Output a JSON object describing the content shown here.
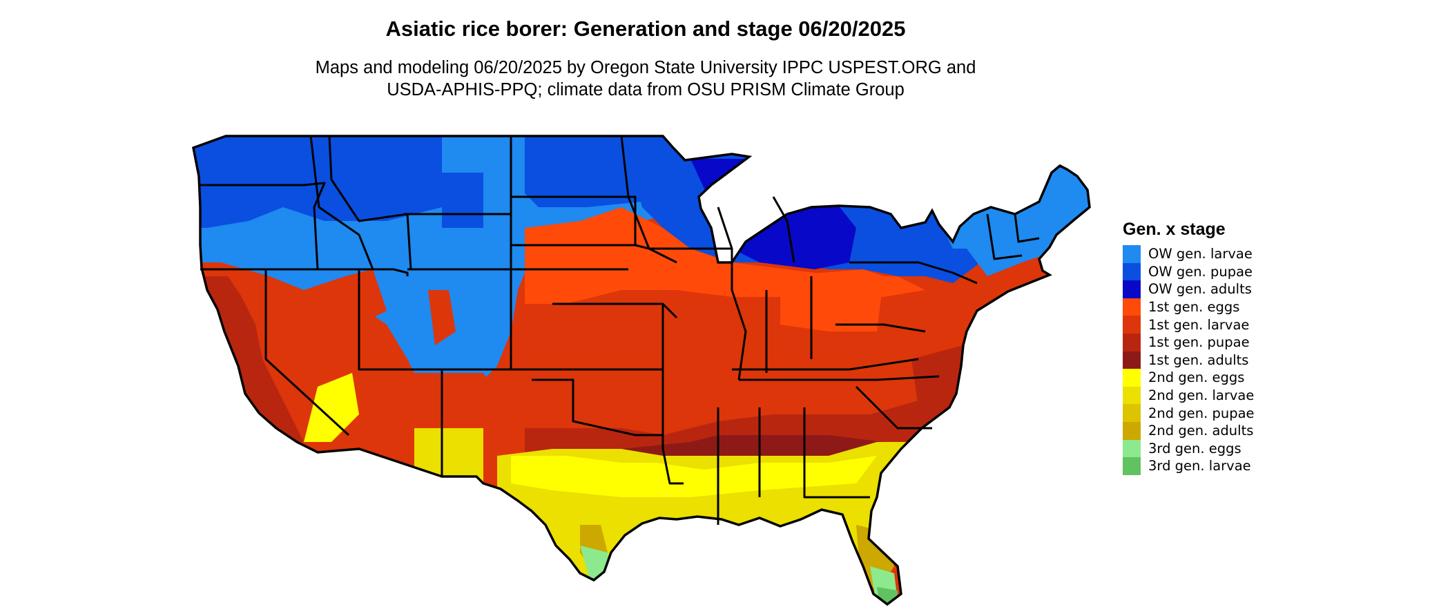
{
  "title": "Asiatic rice borer: Generation and stage 06/20/2025",
  "subtitle": [
    "Maps and modeling 06/20/2025 by Oregon State University IPPC USPEST.ORG and",
    "USDA-APHIS-PPQ; climate data from OSU PRISM Climate Group"
  ],
  "legend": {
    "title": "Gen. x stage",
    "items": [
      {
        "label": "OW gen. larvae",
        "color": "#1f8af0"
      },
      {
        "label": "OW gen. pupae",
        "color": "#0a4fe0"
      },
      {
        "label": "OW gen. adults",
        "color": "#0808c8"
      },
      {
        "label": "1st gen. eggs",
        "color": "#ff4a0a"
      },
      {
        "label": "1st gen. larvae",
        "color": "#dd360a"
      },
      {
        "label": "1st gen. pupae",
        "color": "#b82610"
      },
      {
        "label": "1st gen. adults",
        "color": "#8e1a18"
      },
      {
        "label": "2nd gen. eggs",
        "color": "#ffff00"
      },
      {
        "label": "2nd gen. larvae",
        "color": "#ebe000"
      },
      {
        "label": "2nd gen. pupae",
        "color": "#dcc400"
      },
      {
        "label": "2nd gen. adults",
        "color": "#cca800"
      },
      {
        "label": "3rd gen. eggs",
        "color": "#8de98d"
      },
      {
        "label": "3rd gen. larvae",
        "color": "#60c260"
      }
    ]
  }
}
